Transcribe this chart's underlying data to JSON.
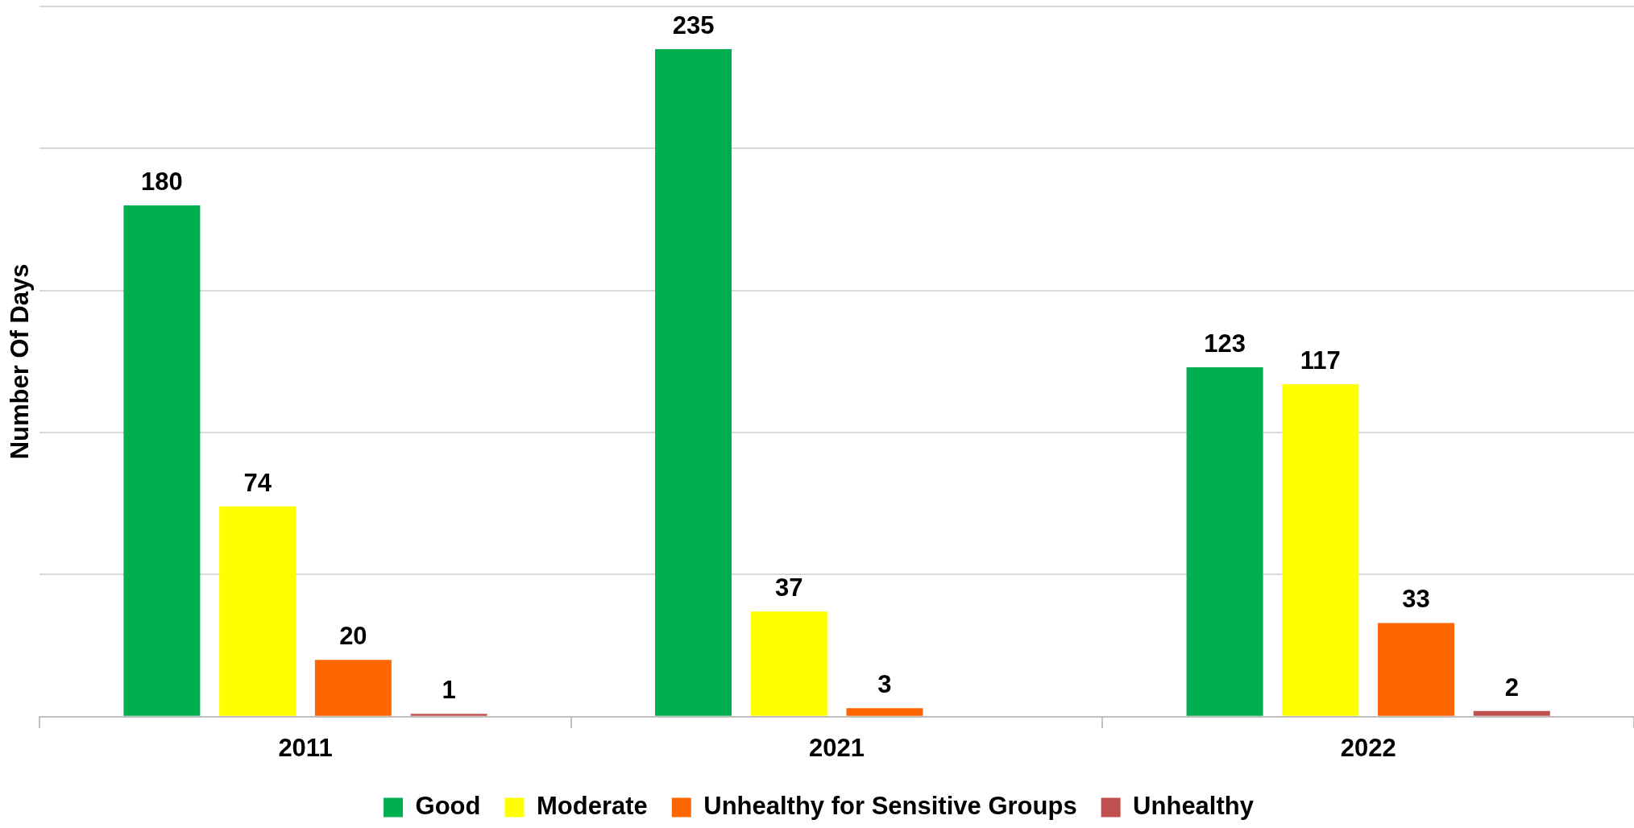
{
  "chart_data": {
    "type": "bar",
    "ylabel": "Number Of Days",
    "categories": [
      "2011",
      "2021",
      "2022"
    ],
    "series": [
      {
        "name": "Good",
        "color": "#00b050",
        "values": [
          180,
          235,
          123
        ]
      },
      {
        "name": "Moderate",
        "color": "#ffff00",
        "values": [
          74,
          37,
          117
        ]
      },
      {
        "name": "Unhealthy for Sensitive Groups",
        "color": "#ff6600",
        "values": [
          20,
          3,
          33
        ]
      },
      {
        "name": "Unhealthy",
        "color": "#c0504d",
        "values": [
          1,
          null,
          2
        ]
      }
    ],
    "ylim": [
      0,
      250
    ],
    "yticks": [
      {
        "value": 0,
        "label": null
      },
      {
        "value": 50,
        "label": null
      },
      {
        "value": 100,
        "label": null
      },
      {
        "value": 150,
        "label": null
      },
      {
        "value": 200,
        "label": null
      },
      {
        "value": 250,
        "label": null
      }
    ],
    "tick_labels": "x",
    "grid": "y",
    "legend": "bottom",
    "data_labels": true
  }
}
